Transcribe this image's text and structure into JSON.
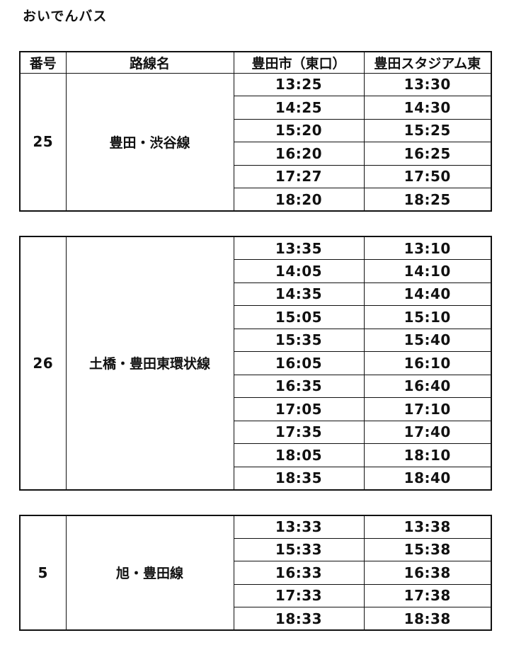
{
  "page": {
    "title": "おいでんバス"
  },
  "table_header": {
    "columns": [
      "番号",
      "路線名",
      "豊田市（東口）",
      "豊田スタジアム東"
    ]
  },
  "tables": [
    {
      "route_number": "25",
      "route_name": "豊田・渋谷線",
      "has_header": true,
      "times": [
        [
          "13:25",
          "13:30"
        ],
        [
          "14:25",
          "14:30"
        ],
        [
          "15:20",
          "15:25"
        ],
        [
          "16:20",
          "16:25"
        ],
        [
          "17:27",
          "17:50"
        ],
        [
          "18:20",
          "18:25"
        ]
      ]
    },
    {
      "route_number": "26",
      "route_name": "土橋・豊田東環状線",
      "has_header": false,
      "times": [
        [
          "13:35",
          "13:10"
        ],
        [
          "14:05",
          "14:10"
        ],
        [
          "14:35",
          "14:40"
        ],
        [
          "15:05",
          "15:10"
        ],
        [
          "15:35",
          "15:40"
        ],
        [
          "16:05",
          "16:10"
        ],
        [
          "16:35",
          "16:40"
        ],
        [
          "17:05",
          "17:10"
        ],
        [
          "17:35",
          "17:40"
        ],
        [
          "18:05",
          "18:10"
        ],
        [
          "18:35",
          "18:40"
        ]
      ]
    },
    {
      "route_number": "5",
      "route_name": "旭・豊田線",
      "has_header": false,
      "times": [
        [
          "13:33",
          "13:38"
        ],
        [
          "15:33",
          "15:38"
        ],
        [
          "16:33",
          "16:38"
        ],
        [
          "17:33",
          "17:38"
        ],
        [
          "18:33",
          "18:38"
        ]
      ]
    }
  ],
  "colors": {
    "text": "#111111",
    "border": "#111111",
    "background": "#ffffff"
  }
}
